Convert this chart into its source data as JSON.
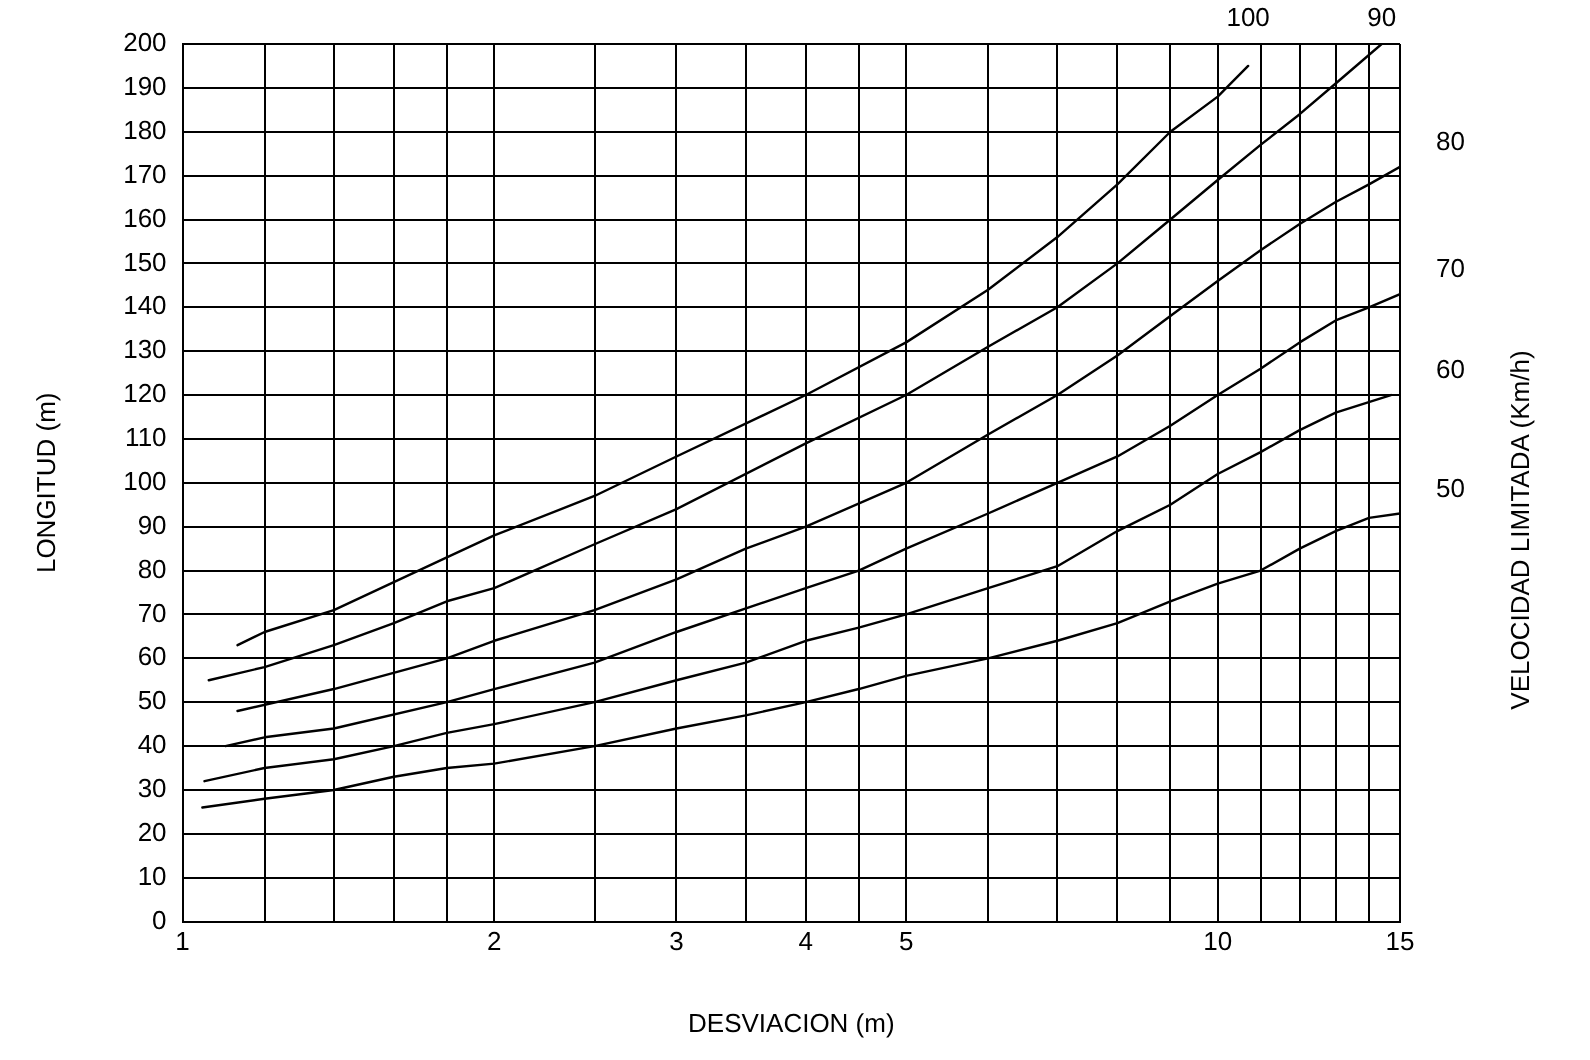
{
  "chart_data": {
    "type": "line",
    "xlabel": "DESVIACION (m)",
    "ylabel": "LONGITUD (m)",
    "y2label": "VELOCIDAD LIMITADA (Km/h)",
    "log": "x",
    "grid": true,
    "legend": false,
    "marker": "none",
    "line_style": "solid",
    "xlim": [
      1,
      15
    ],
    "xticks": [
      1,
      {
        "value": 1.2,
        "label": null
      },
      {
        "value": 1.4,
        "label": null
      },
      {
        "value": 1.6,
        "label": null
      },
      {
        "value": 1.8,
        "label": null
      },
      2,
      {
        "value": 2.5,
        "label": null
      },
      3,
      {
        "value": 3.5,
        "label": null
      },
      4,
      {
        "value": 4.5,
        "label": null
      },
      5,
      {
        "value": 6,
        "label": null
      },
      {
        "value": 7,
        "label": null
      },
      {
        "value": 8,
        "label": null
      },
      {
        "value": 9,
        "label": null
      },
      10,
      {
        "value": 11,
        "label": null
      },
      {
        "value": 12,
        "label": null
      },
      {
        "value": 13,
        "label": null
      },
      {
        "value": 14,
        "label": null
      },
      15
    ],
    "ylim": [
      0,
      200
    ],
    "yticks": [
      0,
      10,
      20,
      30,
      40,
      50,
      60,
      70,
      80,
      90,
      100,
      110,
      120,
      130,
      140,
      150,
      160,
      170,
      180,
      190,
      200
    ],
    "series": [
      {
        "name": "100",
        "color": "#000000",
        "x": [
          1.13,
          1.2,
          1.4,
          1.8,
          2,
          2.5,
          3,
          4,
          5,
          6,
          7,
          8,
          9,
          10,
          10.7
        ],
        "values": [
          63,
          66,
          71,
          83,
          88,
          97,
          106,
          120,
          132,
          144,
          156,
          168,
          180,
          188,
          195
        ]
      },
      {
        "name": "90",
        "color": "#000000",
        "x": [
          1.06,
          1.2,
          1.4,
          1.6,
          1.8,
          2,
          2.5,
          3,
          4,
          5,
          6,
          7,
          8,
          9,
          10,
          11,
          12,
          13,
          14.4
        ],
        "values": [
          55,
          58,
          63,
          68,
          73,
          76,
          86,
          94,
          109,
          120,
          131,
          140,
          150,
          160,
          169,
          177,
          184,
          191,
          200
        ]
      },
      {
        "name": "80",
        "color": "#000000",
        "x": [
          1.13,
          1.4,
          1.8,
          2,
          2.5,
          3,
          3.5,
          4,
          5,
          6,
          7,
          8,
          9,
          10,
          11,
          12,
          13,
          14,
          15
        ],
        "values": [
          48,
          53,
          60,
          64,
          71,
          78,
          85,
          90,
          100,
          111,
          120,
          129,
          138,
          146,
          153,
          159,
          164,
          168,
          172
        ]
      },
      {
        "name": "70",
        "color": "#000000",
        "x": [
          1.1,
          1.2,
          1.4,
          1.8,
          2,
          2.5,
          3,
          4,
          4.5,
          5,
          6,
          7,
          8,
          9,
          10,
          11,
          12,
          13,
          14,
          15
        ],
        "values": [
          40,
          42,
          44,
          50,
          53,
          59,
          66,
          76,
          80,
          85,
          93,
          100,
          106,
          113,
          120,
          126,
          132,
          137,
          140,
          143
        ]
      },
      {
        "name": "60",
        "color": "#000000",
        "x": [
          1.05,
          1.2,
          1.4,
          1.6,
          1.8,
          2,
          2.5,
          3,
          3.5,
          4,
          4.5,
          5,
          6,
          7,
          8,
          9,
          10,
          11,
          12,
          13,
          14.7
        ],
        "values": [
          32,
          35,
          37,
          40,
          43,
          45,
          50,
          55,
          59,
          64,
          67,
          70,
          76,
          81,
          89,
          95,
          102,
          107,
          112,
          116,
          120
        ]
      },
      {
        "name": "50",
        "color": "#000000",
        "x": [
          1.045,
          1.2,
          1.4,
          1.6,
          1.8,
          2,
          2.5,
          3,
          3.5,
          4,
          4.5,
          5,
          6,
          7,
          8,
          9,
          10,
          11,
          12,
          13,
          14,
          15
        ],
        "values": [
          26,
          28,
          30,
          33,
          35,
          36,
          40,
          44,
          47,
          50,
          53,
          56,
          60,
          64,
          68,
          73,
          77,
          80,
          85,
          89,
          92,
          93
        ]
      }
    ]
  }
}
